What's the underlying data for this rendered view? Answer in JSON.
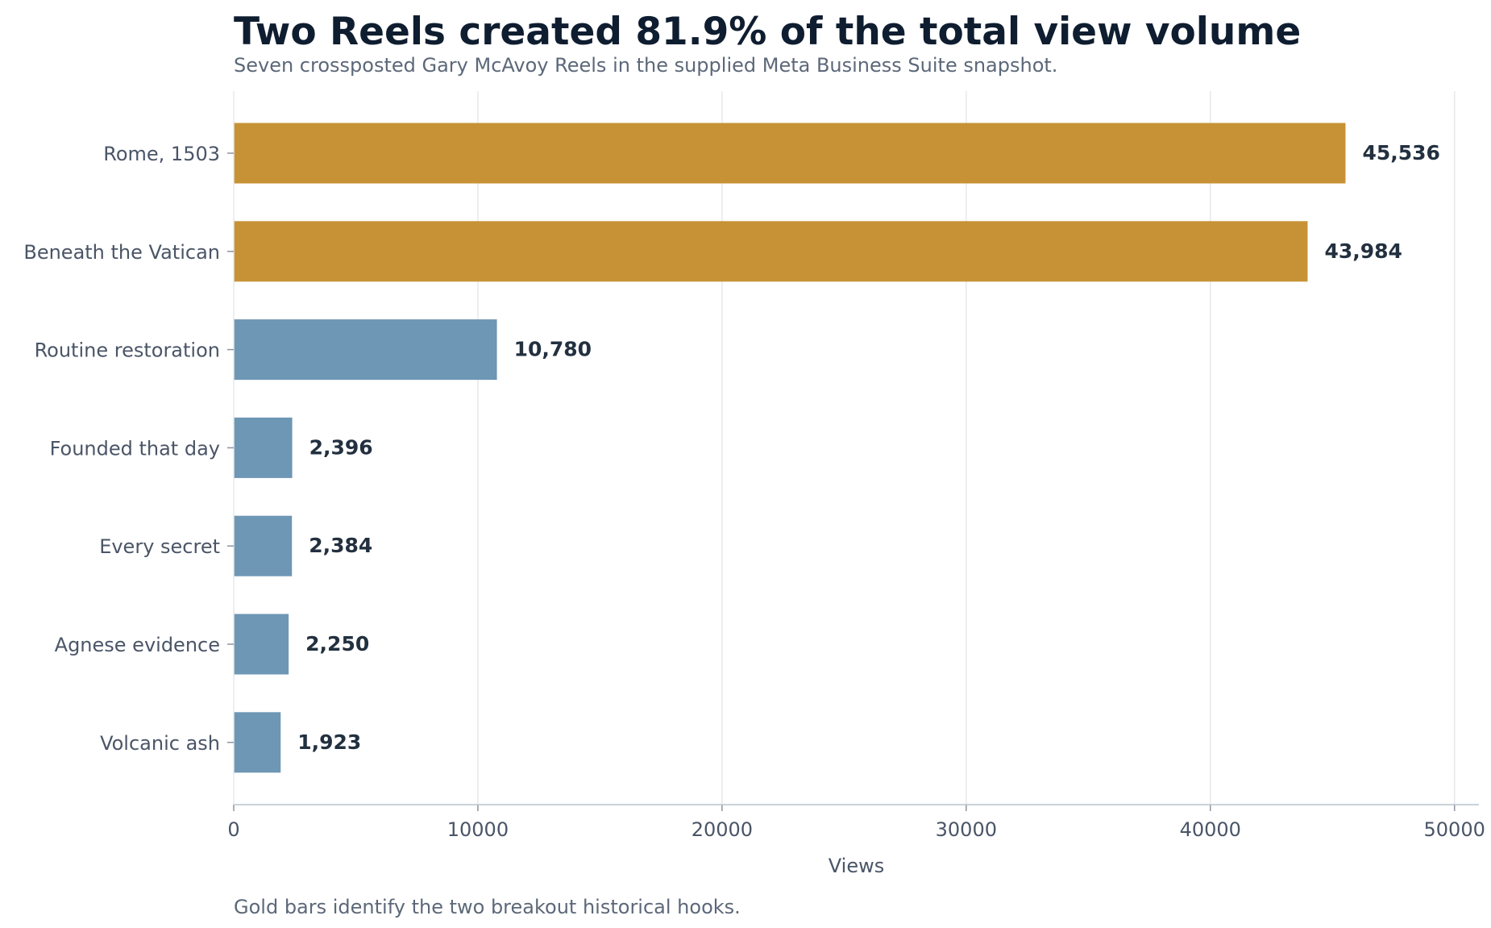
{
  "title": "Two Reels created 81.9% of the total view volume",
  "subtitle": "Seven crossposted Gary McAvoy Reels in the supplied Meta Business Suite snapshot.",
  "footnote": "Gold bars identify the two breakout historical hooks.",
  "colors": {
    "highlight": "#c79236",
    "default": "#6e96b5",
    "grid": "#e6e8eb",
    "axis": "#b9c2cc",
    "tick": "#8a94a0"
  },
  "chart_data": {
    "type": "bar",
    "orientation": "horizontal",
    "categories": [
      "Rome, 1503",
      "Beneath the Vatican",
      "Routine restoration",
      "Founded that day",
      "Every secret",
      "Agnese evidence",
      "Volcanic ash"
    ],
    "values": [
      45536,
      43984,
      10780,
      2396,
      2384,
      2250,
      1923
    ],
    "value_labels": [
      "45,536",
      "43,984",
      "10,780",
      "2,396",
      "2,384",
      "2,250",
      "1,923"
    ],
    "highlighted": [
      true,
      true,
      false,
      false,
      false,
      false,
      false
    ],
    "xlabel": "Views",
    "ylabel": "",
    "xlim": [
      0,
      51000
    ],
    "xticks": [
      0,
      10000,
      20000,
      30000,
      40000,
      50000
    ],
    "xtick_labels": [
      "0",
      "10000",
      "20000",
      "30000",
      "40000",
      "50000"
    ],
    "grid": "vertical"
  }
}
